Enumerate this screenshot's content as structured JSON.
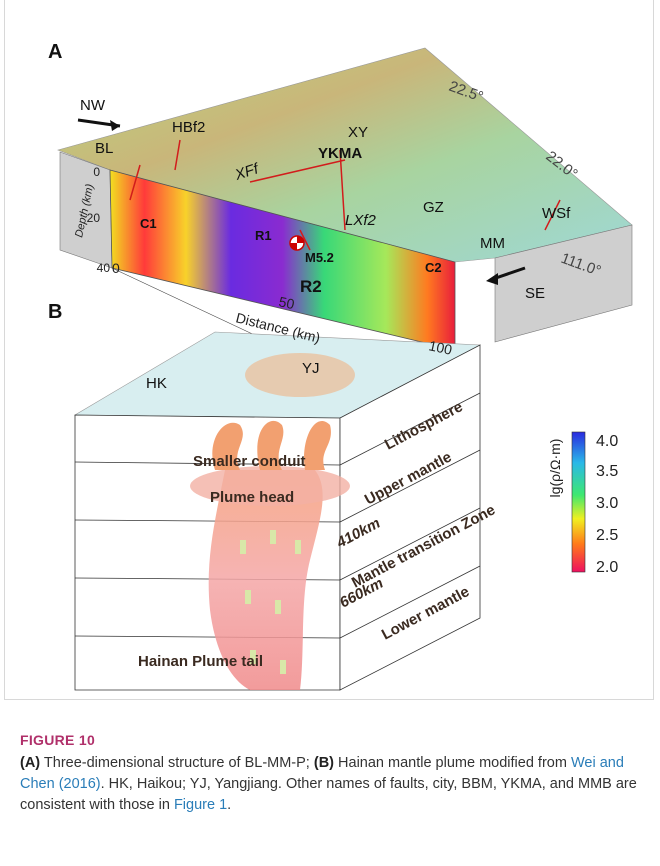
{
  "figure": {
    "panel_a": {
      "label": "A",
      "nw": "NW",
      "se": "SE",
      "hbf2": "HBf2",
      "bl": "BL",
      "xy": "XY",
      "lat_225": "22.5°",
      "lat_220": "22.0°",
      "lon_111": "111.0°",
      "xff": "XFf",
      "ykma": "YKMA",
      "gz": "GZ",
      "wsf": "WSf",
      "mm": "MM",
      "lxf2": "LXf2",
      "c1": "C1",
      "r1": "R1",
      "m52": "M5.2",
      "c2": "C2",
      "r2": "R2",
      "depth_ticks": [
        "0",
        "20",
        "40"
      ],
      "depth_label": "Depth (km)",
      "distance_ticks": [
        "0",
        "50",
        "100"
      ],
      "distance_label": "Distance (km)"
    },
    "panel_b": {
      "label": "B",
      "yj": "YJ",
      "hk": "HK",
      "lithosphere": "Lithosphere",
      "upper_mantle": "Upper mantle",
      "transition_zone": "Mantle transition Zone",
      "lower_mantle": "Lower mantle",
      "smaller_conduit": "Smaller conduit",
      "plume_head": "Plume head",
      "d410": "410km",
      "d660": "660km",
      "plume_tail": "Hainan Plume tail",
      "colorbar_label": "lg(ρ/Ω·m)",
      "colorbar_ticks": [
        "4.0",
        "3.5",
        "3.0",
        "2.5",
        "2.0"
      ]
    },
    "caption": {
      "number": "FIGURE 10",
      "a": "(A)",
      "a_text": " Three-dimensional structure of BL-MM-P; ",
      "b": "(B)",
      "b_text": " Hainan mantle plume modified from ",
      "ref": "Wei and Chen (2016)",
      "rest": ". HK, Haikou; YJ, Yangjiang. Other names of faults, city, BBM, YKMA, and MMB are consistent with those in ",
      "fig_ref": "Figure 1",
      "end": "."
    }
  }
}
